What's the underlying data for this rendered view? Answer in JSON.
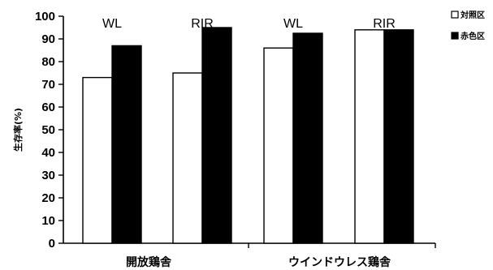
{
  "chart_data": {
    "type": "bar",
    "ylabel": "生存率(%)",
    "ylim": [
      0,
      100
    ],
    "yticks": [
      0,
      10,
      20,
      30,
      40,
      50,
      60,
      70,
      80,
      90,
      100
    ],
    "grid": false,
    "legend_position": "top-right",
    "group_labels": [
      "開放鶏舎",
      "ウインドウレス鶏舎"
    ],
    "categories": [
      "WL",
      "RIR",
      "WL",
      "RIR"
    ],
    "series": [
      {
        "name": "対照区",
        "color": "#ffffff",
        "values": [
          73,
          75,
          86,
          94
        ]
      },
      {
        "name": "赤色区",
        "color": "#000000",
        "values": [
          87,
          95,
          92.5,
          94
        ]
      }
    ]
  }
}
